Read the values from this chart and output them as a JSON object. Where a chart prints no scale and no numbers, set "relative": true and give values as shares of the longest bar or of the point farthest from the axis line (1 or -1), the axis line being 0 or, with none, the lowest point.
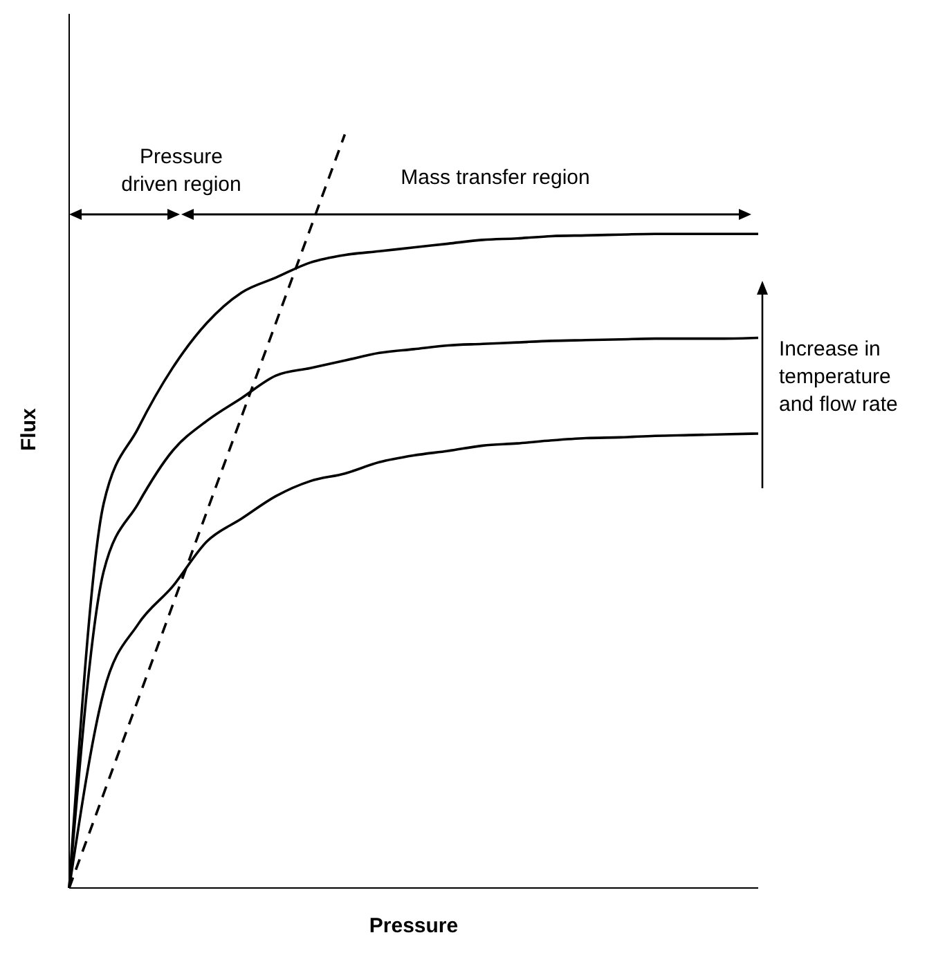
{
  "chart_data": {
    "type": "line",
    "relative": true,
    "xlabel": "Pressure",
    "ylabel": "Flux",
    "categories": [
      null,
      null,
      null,
      null,
      null,
      null,
      null,
      null,
      null,
      null,
      null,
      null,
      null,
      null,
      null,
      null,
      null,
      null,
      null,
      null,
      null
    ],
    "series": [
      {
        "color": "#000000",
        "values": [
          0,
          0.51,
          0.61,
          0.69,
          0.75,
          0.79,
          0.81,
          0.83,
          0.84,
          0.845,
          0.85,
          0.855,
          0.86,
          0.862,
          0.865,
          0.866,
          0.867,
          0.868,
          0.868,
          0.868,
          0.868
        ]
      },
      {
        "color": "#000000",
        "values": [
          0,
          0.42,
          0.51,
          0.58,
          0.62,
          0.65,
          0.68,
          0.69,
          0.7,
          0.71,
          0.715,
          0.72,
          0.722,
          0.724,
          0.726,
          0.727,
          0.728,
          0.729,
          0.729,
          0.729,
          0.73
        ]
      },
      {
        "color": "#000000",
        "values": [
          0,
          0.26,
          0.35,
          0.4,
          0.46,
          0.49,
          0.52,
          0.54,
          0.55,
          0.565,
          0.574,
          0.58,
          0.587,
          0.59,
          0.594,
          0.597,
          0.598,
          0.6,
          0.601,
          0.602,
          0.603
        ]
      },
      {
        "color": "#000000",
        "line_style": "dashed",
        "values": [
          0,
          0.125,
          0.25,
          0.375,
          0.5,
          0.625,
          0.75,
          0.875,
          1,
          null,
          null,
          null,
          null,
          null,
          null,
          null,
          null,
          null,
          null,
          null,
          null
        ]
      }
    ],
    "annotations": [
      "Pressure driven region",
      "Mass transfer region",
      "Increase in temperature and flow rate"
    ],
    "legend": false,
    "grid": false,
    "marker": "none"
  }
}
